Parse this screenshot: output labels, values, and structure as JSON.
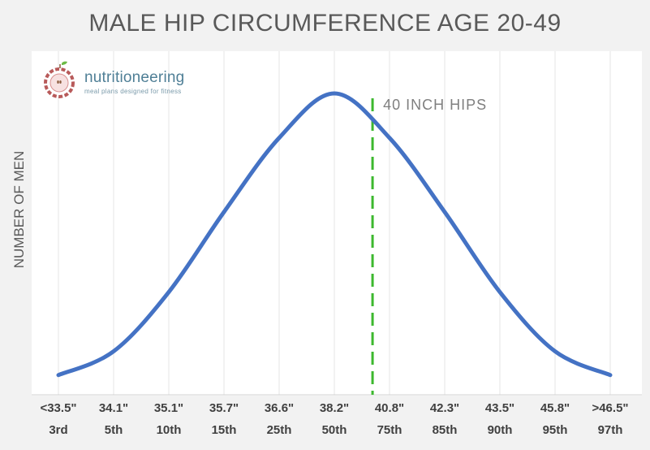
{
  "title": "MALE HIP CIRCUMFERENCE AGE 20-49",
  "brand": {
    "name": "nutritioneering",
    "tagline": "meal plans designed for fitness",
    "icon": "apple-icon"
  },
  "colors": {
    "curve": "#4472c4",
    "marker": "#3cb82e",
    "background": "#f2f2f2",
    "plot_background": "#ffffff",
    "text": "#595959"
  },
  "chart_data": {
    "type": "line",
    "title": "MALE HIP CIRCUMFERENCE AGE 20-49",
    "xlabel": "",
    "ylabel": "NUMBER OF MEN",
    "categories": [
      "<33.5\"",
      "34.1\"",
      "35.1\"",
      "35.7\"",
      "36.6\"",
      "38.2\"",
      "40.8\"",
      "42.3\"",
      "43.5\"",
      "45.8\"",
      ">46.5\""
    ],
    "percentiles": [
      "3rd",
      "5th",
      "10th",
      "15th",
      "25th",
      "50th",
      "75th",
      "85th",
      "90th",
      "95th",
      "97th"
    ],
    "series": [
      {
        "values": [
          0.05,
          0.13,
          0.33,
          0.6,
          0.85,
          1.0,
          0.85,
          0.6,
          0.33,
          0.13,
          0.05
        ]
      }
    ],
    "ylim": [
      0,
      1
    ],
    "grid": "vertical",
    "legend": "none",
    "annotations": [
      {
        "type": "vline",
        "label": "40 INCH HIPS",
        "between": [
          "38.2\"",
          "40.8\""
        ]
      }
    ]
  }
}
